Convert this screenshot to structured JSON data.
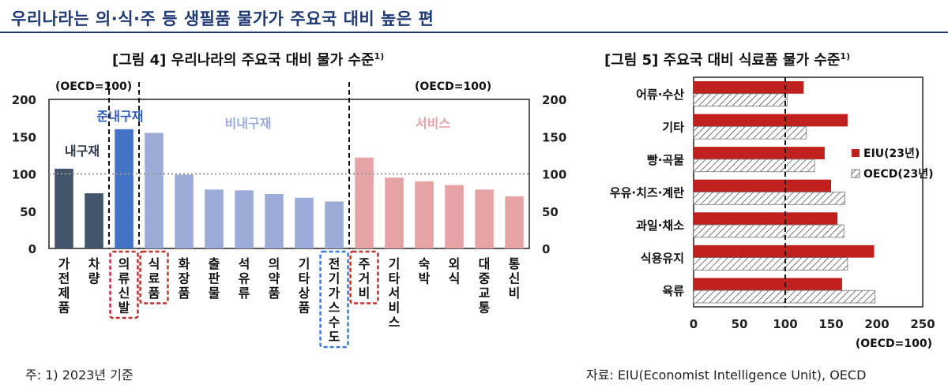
{
  "page": {
    "title": "우리나라는 의·식·주 등 생필품 물가가 주요국 대비 높은 편"
  },
  "chart_data": [
    {
      "type": "bar",
      "title": "[그림 4] 우리나라의 주요국 대비 물가 수준",
      "title_note": "1)",
      "unit_label_left": "(OECD=100)",
      "unit_label_right": "(OECD=100)",
      "categories": [
        "가전제품",
        "차량",
        "의류신발",
        "식료품",
        "화장품",
        "출판물",
        "석유류",
        "의약품",
        "기타상품",
        "전기가스수도",
        "주거비",
        "기타서비스",
        "숙박",
        "외식",
        "대중교통",
        "통신비"
      ],
      "values": [
        107,
        74,
        160,
        155,
        99,
        79,
        78,
        73,
        68,
        63,
        122,
        95,
        90,
        85,
        79,
        70
      ],
      "groups": [
        {
          "label": "내구재",
          "from": 0,
          "to": 1,
          "color": "#44546a"
        },
        {
          "label": "준내구재",
          "from": 2,
          "to": 3,
          "color": "#4472c4"
        },
        {
          "label": "비내구재",
          "from": 3,
          "to": 9,
          "color": "#9dabd9"
        },
        {
          "label": "서비스",
          "from": 10,
          "to": 15,
          "color": "#e5a3a6"
        }
      ],
      "bar_colors": [
        "#44546a",
        "#44546a",
        "#4472c4",
        "#9dabd9",
        "#9dabd9",
        "#9dabd9",
        "#9dabd9",
        "#9dabd9",
        "#9dabd9",
        "#9dabd9",
        "#e5a3a6",
        "#e5a3a6",
        "#e5a3a6",
        "#e5a3a6",
        "#e5a3a6",
        "#e5a3a6"
      ],
      "highlighted": [
        {
          "category": "의류신발",
          "color": "#c0312f"
        },
        {
          "category": "식료품",
          "color": "#c0312f"
        },
        {
          "category": "전기가스수도",
          "color": "#3a7bd5"
        },
        {
          "category": "주거비",
          "color": "#c0312f"
        }
      ],
      "ylim": [
        0,
        200
      ],
      "yticks": [
        0,
        50,
        100,
        150,
        200
      ],
      "reference_line": 100
    },
    {
      "type": "bar",
      "orientation": "horizontal",
      "title": "[그림 5] 주요국 대비 식료품 물가 수준",
      "title_note": "1)",
      "categories": [
        "어류·수산",
        "기타",
        "빵·곡물",
        "우유·치즈·계란",
        "과일·채소",
        "식용유지",
        "육류"
      ],
      "series": [
        {
          "name": "EIU(23년)",
          "color": "#c0201e",
          "values": [
            120,
            168,
            143,
            150,
            157,
            197,
            162
          ]
        },
        {
          "name": "OECD(23년)",
          "pattern": "hatched",
          "values": [
            102,
            123,
            132,
            165,
            164,
            168,
            198
          ]
        }
      ],
      "xlim": [
        0,
        250
      ],
      "xticks": [
        0,
        50,
        100,
        150,
        200,
        250
      ],
      "xlabel": "(OECD=100)",
      "reference_line": 100,
      "legend_position": "right"
    }
  ],
  "footer": {
    "note": "주: 1) 2023년 기준",
    "source": "자료: EIU(Economist Intelligence Unit), OECD"
  }
}
